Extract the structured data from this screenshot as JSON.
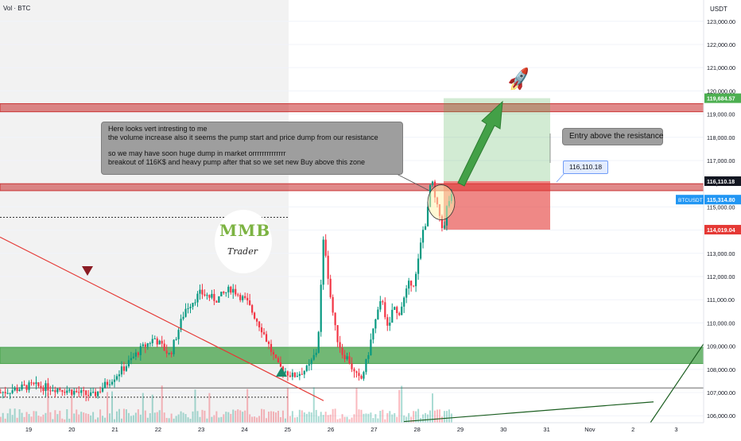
{
  "header": {
    "title": "Vol · BTC",
    "currency": "USDT"
  },
  "chart_data": {
    "type": "candlestick",
    "symbol": "BTCUSDT",
    "ylim": [
      105700,
      123300
    ],
    "y_ticks": [
      "106,000.00",
      "107,000.00",
      "108,000.00",
      "109,000.00",
      "110,000.00",
      "111,000.00",
      "112,000.00",
      "113,000.00",
      "114,000.00",
      "115,000.00",
      "116,000.00",
      "117,000.00",
      "118,000.00",
      "119,000.00",
      "120,000.00",
      "121,000.00",
      "122,000.00",
      "123,000.00"
    ],
    "x_ticks": [
      "19",
      "20",
      "21",
      "22",
      "23",
      "24",
      "25",
      "26",
      "27",
      "28",
      "29",
      "30",
      "31",
      "Nov",
      "2",
      "3"
    ],
    "price_path": [
      [
        0,
        107000
      ],
      [
        2,
        107300
      ],
      [
        4,
        107150
      ],
      [
        6,
        106850
      ],
      [
        7,
        107450
      ],
      [
        8,
        108050
      ],
      [
        9,
        108800
      ],
      [
        10,
        109350
      ],
      [
        11,
        108600
      ],
      [
        12,
        110600
      ],
      [
        13,
        111300
      ],
      [
        14,
        111000
      ],
      [
        15,
        111500
      ],
      [
        16,
        110900
      ],
      [
        17,
        109700
      ],
      [
        18,
        108150
      ],
      [
        19,
        107700
      ],
      [
        20,
        108050
      ],
      [
        20.6,
        108900
      ],
      [
        21.0,
        113800
      ],
      [
        21.4,
        111300
      ],
      [
        21.8,
        109500
      ],
      [
        22.2,
        108700
      ],
      [
        22.6,
        108450
      ],
      [
        23,
        107800
      ],
      [
        23.4,
        107500
      ],
      [
        23.8,
        108400
      ],
      [
        24.2,
        109700
      ],
      [
        24.8,
        111100
      ],
      [
        25.2,
        109500
      ],
      [
        25.5,
        110800
      ],
      [
        25.8,
        110300
      ],
      [
        26.2,
        111000
      ],
      [
        26.6,
        111800
      ],
      [
        26.9,
        111700
      ],
      [
        27.2,
        112900
      ],
      [
        27.4,
        113900
      ],
      [
        27.6,
        114300
      ],
      [
        27.75,
        114800
      ],
      [
        27.9,
        115900
      ],
      [
        28.05,
        116000
      ],
      [
        28.2,
        115400
      ],
      [
        28.35,
        115000
      ],
      [
        28.5,
        114700
      ],
      [
        28.65,
        114300
      ],
      [
        28.8,
        113900
      ],
      [
        28.9,
        114500
      ],
      [
        29.0,
        115000
      ],
      [
        29.15,
        115300
      ],
      [
        29.3,
        115400
      ]
    ],
    "price_labels": [
      {
        "value": 119684.57,
        "text": "119,684.57",
        "color": "#4caf50"
      },
      {
        "value": 116110.18,
        "text": "116,110.18",
        "color": "#131722"
      },
      {
        "value": 115314.8,
        "text": "115,314.80",
        "color": "#2196f3"
      },
      {
        "value": 114019.04,
        "text": "114,019.04",
        "color": "#e53935"
      }
    ],
    "symbol_tag": "BTCUSDT",
    "zones": [
      {
        "kind": "resistance",
        "from": 119100,
        "to": 119450,
        "color": "#c62828"
      },
      {
        "kind": "resistance",
        "from": 115700,
        "to": 116000,
        "color": "#c62828"
      },
      {
        "kind": "support",
        "from": 108250,
        "to": 108950,
        "color": "#43a047"
      }
    ],
    "position": {
      "entry": 116110.18,
      "target": 119684.57,
      "stop": 114019.04
    },
    "dotted_levels": [
      114550,
      106800
    ],
    "price_callout": "116,110.18"
  },
  "annotations": {
    "note_main": [
      "Here looks vert intresting to me",
      "the volume increase also it seems the pump start and price dump from our resistance",
      "",
      "so we may have soon huge dump in market orrrrrrrrrrrrrr",
      "breakout of 116K$ and heavy pump after that so we set new Buy above this zone"
    ],
    "note_entry": "Entry above the resistance",
    "logo_letters": "MMB",
    "logo_word": "Trader"
  },
  "colors": {
    "bull": "#089981",
    "bear": "#f23645",
    "axis_text": "#131722",
    "grid": "#f0f3fa"
  }
}
